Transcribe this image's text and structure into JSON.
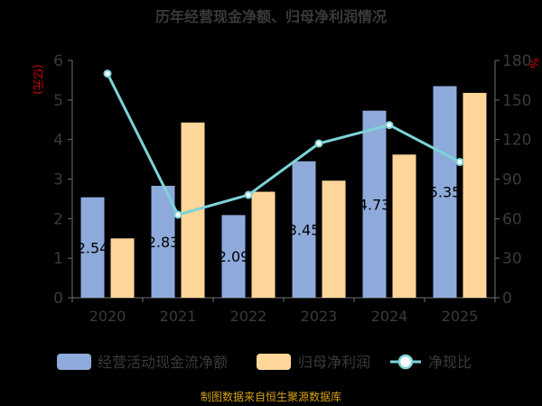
{
  "chart_data": {
    "type": "bar",
    "title": "历年经营现金净额、归母净利润情况",
    "left_unit": "(亿元)",
    "right_unit": "%",
    "categories": [
      "2020",
      "2021",
      "2022",
      "2023",
      "2024",
      "2025"
    ],
    "series": [
      {
        "name": "经营活动现金流净额",
        "type": "bar",
        "axis": "left",
        "color": "#8eaadb",
        "values": [
          2.54,
          2.83,
          2.09,
          3.45,
          4.73,
          5.35
        ],
        "labels": [
          "2.54",
          "2.83",
          "2.09",
          "3.45",
          "4.73",
          "5.35"
        ]
      },
      {
        "name": "归母净利润",
        "type": "bar",
        "axis": "left",
        "color": "#ffd699",
        "values": [
          1.5,
          4.43,
          2.68,
          2.96,
          3.62,
          5.18
        ]
      },
      {
        "name": "净现比",
        "type": "line",
        "axis": "right",
        "color": "#7dd3d8",
        "values": [
          170,
          63,
          78,
          117,
          131,
          103
        ]
      }
    ],
    "left_axis": {
      "min": 0,
      "max": 6,
      "ticks": [
        0,
        1,
        2,
        3,
        4,
        5,
        6
      ]
    },
    "right_axis": {
      "min": 0,
      "max": 180,
      "ticks": [
        0,
        30,
        60,
        90,
        120,
        150,
        180
      ]
    },
    "legend_position": "bottom",
    "grid": false
  },
  "source_text": "制图数据来自恒生聚源数据库"
}
